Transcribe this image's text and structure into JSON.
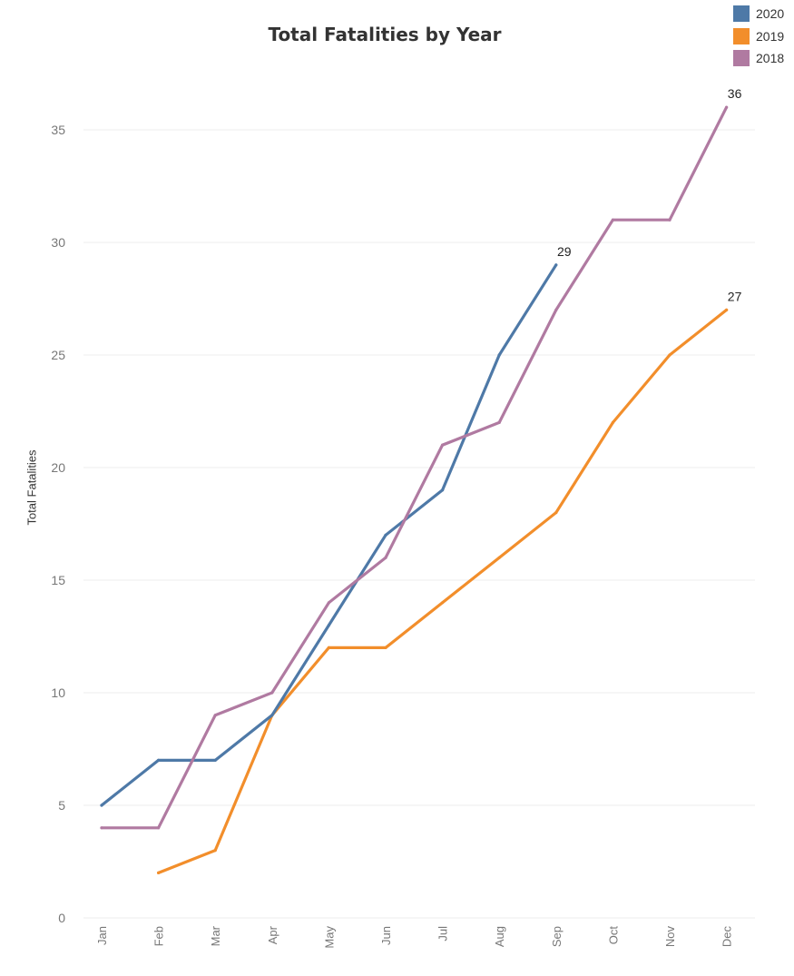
{
  "chart_data": {
    "type": "line",
    "title": "Total Fatalities by Year",
    "xlabel": "",
    "ylabel": "Total Fatalities",
    "categories": [
      "Jan",
      "Feb",
      "Mar",
      "Apr",
      "May",
      "Jun",
      "Jul",
      "Aug",
      "Sep",
      "Oct",
      "Nov",
      "Dec"
    ],
    "ylim": [
      0,
      37
    ],
    "yticks": [
      0,
      5,
      10,
      15,
      20,
      25,
      30,
      35
    ],
    "grid": true,
    "legend_position": "top-right",
    "series": [
      {
        "name": "2020",
        "color": "#4e79a7",
        "values": [
          5,
          7,
          7,
          9,
          13,
          17,
          19,
          25,
          29,
          null,
          null,
          null
        ],
        "end_label": "29"
      },
      {
        "name": "2019",
        "color": "#f28e2b",
        "values": [
          null,
          2,
          3,
          9,
          12,
          12,
          14,
          16,
          18,
          22,
          25,
          27
        ],
        "end_label": "27"
      },
      {
        "name": "2018",
        "color": "#b07aa1",
        "values": [
          4,
          4,
          9,
          10,
          14,
          16,
          21,
          22,
          27,
          31,
          31,
          36
        ],
        "end_label": "36"
      }
    ]
  }
}
